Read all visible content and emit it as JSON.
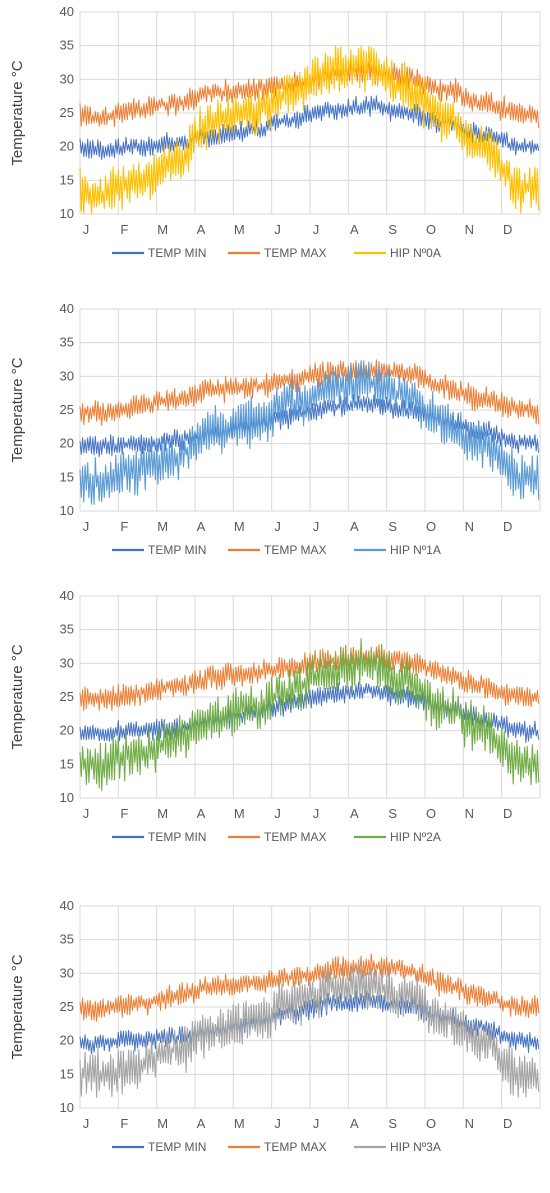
{
  "chart_data": [
    {
      "type": "line",
      "ylabel": "Temperature °C",
      "ylim": [
        10,
        40
      ],
      "yticks": [
        10,
        15,
        20,
        25,
        30,
        35,
        40
      ],
      "categories": [
        "J",
        "F",
        "M",
        "A",
        "M",
        "J",
        "J",
        "A",
        "S",
        "O",
        "N",
        "D"
      ],
      "grid": true,
      "legend": "bottom",
      "series": [
        {
          "name": "TEMP MIN",
          "color": "#4472C4",
          "values": [
            19.5,
            20,
            20.5,
            21.5,
            22.5,
            24,
            25.5,
            26,
            25,
            23.5,
            22,
            20
          ]
        },
        {
          "name": "TEMP  MAX",
          "color": "#ED7D31",
          "values": [
            24.5,
            25.5,
            26.5,
            28,
            28.5,
            29.5,
            30.5,
            31,
            30.5,
            28.5,
            26.5,
            25
          ]
        },
        {
          "name": "HIP Nº0A",
          "color": "#FFC000",
          "values": [
            13,
            15,
            18,
            24,
            25,
            28,
            31,
            32,
            29,
            24,
            20,
            14
          ]
        }
      ]
    },
    {
      "type": "line",
      "ylabel": "Temperature °C",
      "ylim": [
        10,
        40
      ],
      "yticks": [
        10,
        15,
        20,
        25,
        30,
        35,
        40
      ],
      "categories": [
        "J",
        "F",
        "M",
        "A",
        "M",
        "J",
        "J",
        "A",
        "S",
        "O",
        "N",
        "D"
      ],
      "grid": true,
      "legend": "bottom",
      "series": [
        {
          "name": "TEMP MIN",
          "color": "#4472C4",
          "values": [
            19.5,
            20,
            20.5,
            21.5,
            22.5,
            24,
            25.5,
            26,
            25,
            23.5,
            22,
            20
          ]
        },
        {
          "name": "TEMP  MAX",
          "color": "#ED7D31",
          "values": [
            24.5,
            25.5,
            26.5,
            28,
            28.5,
            29.5,
            30.5,
            31,
            30.5,
            28.5,
            26.5,
            25
          ]
        },
        {
          "name": "HIP Nº1A",
          "color": "#5B9BD5",
          "values": [
            14,
            16,
            18,
            22,
            23,
            26,
            28,
            29,
            27,
            23,
            20,
            15
          ]
        }
      ]
    },
    {
      "type": "line",
      "ylabel": "Temperature °C",
      "ylim": [
        10,
        40
      ],
      "yticks": [
        10,
        15,
        20,
        25,
        30,
        35,
        40
      ],
      "categories": [
        "J",
        "F",
        "M",
        "A",
        "M",
        "J",
        "J",
        "A",
        "S",
        "O",
        "N",
        "D"
      ],
      "grid": true,
      "legend": "bottom",
      "series": [
        {
          "name": "TEMP MIN",
          "color": "#4472C4",
          "values": [
            19.5,
            20,
            20.5,
            21.5,
            22.5,
            24,
            25.5,
            26,
            25,
            23.5,
            22,
            20
          ]
        },
        {
          "name": "TEMP  MAX",
          "color": "#ED7D31",
          "values": [
            24.5,
            25.5,
            26.5,
            28,
            28.5,
            29.5,
            30.5,
            31,
            30.5,
            28.5,
            26.5,
            25
          ]
        },
        {
          "name": "HIP Nº2A",
          "color": "#70AD47",
          "values": [
            15,
            16.5,
            18.5,
            22,
            23.5,
            26,
            28.5,
            30,
            27.5,
            23.5,
            20,
            15
          ]
        }
      ]
    },
    {
      "type": "line",
      "ylabel": "Temperature °C",
      "ylim": [
        10,
        40
      ],
      "yticks": [
        10,
        15,
        20,
        25,
        30,
        35,
        40
      ],
      "categories": [
        "J",
        "F",
        "M",
        "A",
        "M",
        "J",
        "J",
        "A",
        "S",
        "O",
        "N",
        "D"
      ],
      "grid": true,
      "legend": "bottom",
      "series": [
        {
          "name": "TEMP MIN",
          "color": "#4472C4",
          "values": [
            19.5,
            20,
            20.5,
            21.5,
            22.5,
            24,
            25.5,
            26,
            25,
            23.5,
            22,
            20
          ]
        },
        {
          "name": "TEMP  MAX",
          "color": "#ED7D31",
          "values": [
            24.5,
            25.5,
            26.5,
            28,
            28.5,
            29.5,
            30.5,
            31,
            30.5,
            28.5,
            26.5,
            25
          ]
        },
        {
          "name": "HIP Nº3A",
          "color": "#A5A5A5",
          "values": [
            15,
            16.5,
            18.5,
            21.5,
            23,
            25.5,
            27.5,
            28.5,
            26.5,
            23,
            20,
            15
          ]
        }
      ]
    }
  ]
}
